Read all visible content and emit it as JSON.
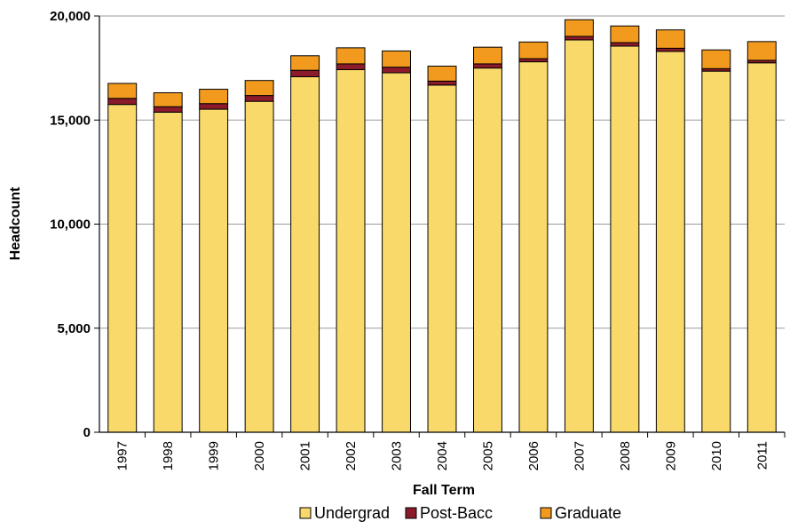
{
  "chart_data": {
    "type": "bar",
    "stacked": true,
    "categories": [
      "1997",
      "1998",
      "1999",
      "2000",
      "2001",
      "2002",
      "2003",
      "2004",
      "2005",
      "2006",
      "2007",
      "2008",
      "2009",
      "2010",
      "2011"
    ],
    "series": [
      {
        "name": "Undergrad",
        "color": "#FAD96B",
        "values": [
          15750,
          15380,
          15520,
          15900,
          17080,
          17420,
          17270,
          16680,
          17500,
          17800,
          18850,
          18550,
          18300,
          17350,
          17750
        ]
      },
      {
        "name": "Post-Bacc",
        "color": "#8B1A2B",
        "values": [
          290,
          260,
          270,
          280,
          310,
          280,
          270,
          190,
          200,
          150,
          170,
          170,
          150,
          120,
          120
        ]
      },
      {
        "name": "Graduate",
        "color": "#F29A1E",
        "values": [
          720,
          670,
          690,
          720,
          700,
          770,
          780,
          720,
          800,
          800,
          800,
          800,
          880,
          900,
          900
        ]
      }
    ],
    "xlabel": "Fall Term",
    "ylabel": "Headcount",
    "ylim": [
      0,
      20000
    ],
    "yticks": [
      0,
      5000,
      10000,
      15000,
      20000
    ],
    "ytick_labels": [
      "0",
      "5,000",
      "10,000",
      "15,000",
      "20,000"
    ],
    "grid": true,
    "legend_position": "bottom"
  }
}
